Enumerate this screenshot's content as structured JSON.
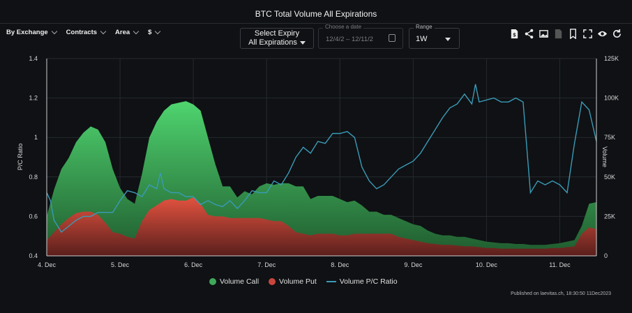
{
  "header": {
    "title": "BTC Total Volume All Expirations",
    "filters": [
      "By Exchange",
      "Contracts",
      "Area",
      "$"
    ],
    "expiry": {
      "line1": "Select Expiry",
      "line2": "All Expirations"
    },
    "date": {
      "label": "Choose a date",
      "value": "12/4/2 – 12/11/2"
    },
    "range": {
      "label": "Range",
      "value": "1W"
    }
  },
  "toolbar_icons": [
    "document-dollar-icon",
    "share-icon",
    "image-capture-icon",
    "csv-file-icon",
    "bookmark-icon",
    "fullscreen-icon",
    "eye-icon",
    "refresh-icon"
  ],
  "colors": {
    "call": "#3fa95a",
    "put": "#c9463c",
    "ratio": "#3a9bb8",
    "background": "#0f1114"
  },
  "legend": {
    "call": "Volume Call",
    "put": "Volume Put",
    "ratio": "Volume P/C Ratio"
  },
  "published": "Published on laevitas.ch, 18:30:50 11Dec2023",
  "chart_data": {
    "type": "area",
    "title": "BTC Total Volume All Expirations",
    "xlabel": "",
    "ylabel_left": "P/C Ratio",
    "ylabel_right": "Volume",
    "x_ticks": [
      "4. Dec",
      "5. Dec",
      "6. Dec",
      "7. Dec",
      "8. Dec",
      "9. Dec",
      "10. Dec",
      "11. Dec"
    ],
    "left_ticks": [
      "0.4",
      "0.6",
      "0.8",
      "1",
      "1.2",
      "1.4"
    ],
    "right_ticks": [
      "0",
      "25K",
      "50K",
      "75K",
      "100K",
      "125K"
    ],
    "ylim_left": [
      0.4,
      1.4
    ],
    "ylim_right": [
      0,
      125000
    ],
    "grid": true,
    "legend_position": "bottom",
    "series": [
      {
        "name": "Volume Call",
        "axis": "right",
        "x": [
          0,
          0.1,
          0.2,
          0.3,
          0.4,
          0.5,
          0.6,
          0.7,
          0.8,
          0.9,
          1.0,
          1.1,
          1.2,
          1.3,
          1.4,
          1.5,
          1.6,
          1.7,
          1.8,
          1.9,
          2.0,
          2.1,
          2.2,
          2.3,
          2.4,
          2.5,
          2.6,
          2.7,
          2.8,
          2.9,
          3.0,
          3.1,
          3.2,
          3.3,
          3.4,
          3.5,
          3.6,
          3.7,
          3.8,
          3.9,
          4.0,
          4.1,
          4.2,
          4.3,
          4.4,
          4.5,
          4.6,
          4.7,
          4.8,
          4.9,
          5.0,
          5.1,
          5.2,
          5.3,
          5.4,
          5.5,
          5.6,
          5.7,
          5.8,
          5.9,
          6.0,
          6.1,
          6.2,
          6.3,
          6.4,
          6.5,
          6.6,
          6.7,
          6.8,
          6.9,
          7.0,
          7.1,
          7.2,
          7.3,
          7.4,
          7.5
        ],
        "values": [
          25000,
          42000,
          55000,
          62000,
          72000,
          78000,
          82000,
          80000,
          72000,
          55000,
          43000,
          36000,
          33000,
          52000,
          75000,
          85000,
          92000,
          96000,
          97000,
          98000,
          96000,
          92000,
          75000,
          58000,
          44000,
          44000,
          37000,
          41000,
          39000,
          44000,
          46000,
          45000,
          46000,
          46000,
          44000,
          44000,
          36000,
          38000,
          38000,
          38000,
          36000,
          34000,
          35000,
          32000,
          28000,
          28000,
          26000,
          26000,
          24000,
          22000,
          20000,
          19000,
          16000,
          14000,
          13000,
          13000,
          12000,
          12000,
          11000,
          10000,
          9000,
          8500,
          8000,
          8000,
          7500,
          7500,
          7000,
          7000,
          7000,
          7500,
          8000,
          9000,
          10000,
          19000,
          33000,
          34000
        ]
      },
      {
        "name": "Volume Put",
        "axis": "right",
        "x": [
          0,
          0.1,
          0.2,
          0.3,
          0.4,
          0.5,
          0.6,
          0.7,
          0.8,
          0.9,
          1.0,
          1.1,
          1.2,
          1.3,
          1.4,
          1.5,
          1.6,
          1.7,
          1.8,
          1.9,
          2.0,
          2.1,
          2.2,
          2.3,
          2.4,
          2.5,
          2.6,
          2.7,
          2.8,
          2.9,
          3.0,
          3.1,
          3.2,
          3.3,
          3.4,
          3.5,
          3.6,
          3.7,
          3.8,
          3.9,
          4.0,
          4.1,
          4.2,
          4.3,
          4.4,
          4.5,
          4.6,
          4.7,
          4.8,
          4.9,
          5.0,
          5.1,
          5.2,
          5.3,
          5.4,
          5.5,
          5.6,
          5.7,
          5.8,
          5.9,
          6.0,
          6.1,
          6.2,
          6.3,
          6.4,
          6.5,
          6.6,
          6.7,
          6.8,
          6.9,
          7.0,
          7.1,
          7.2,
          7.3,
          7.4,
          7.5
        ],
        "values": [
          10000,
          15000,
          20000,
          24000,
          27000,
          28000,
          28000,
          26000,
          21000,
          15000,
          14000,
          12000,
          11000,
          22000,
          29000,
          32000,
          35000,
          36000,
          35000,
          35000,
          37000,
          33000,
          26000,
          25000,
          25000,
          24000,
          24000,
          24000,
          24000,
          24000,
          23000,
          22000,
          22000,
          19000,
          15000,
          14000,
          13000,
          14000,
          14000,
          14000,
          13000,
          13000,
          14000,
          14000,
          14000,
          14000,
          14000,
          14000,
          12000,
          11000,
          10000,
          9000,
          8000,
          7500,
          7000,
          7000,
          6500,
          6000,
          6000,
          5500,
          5000,
          5000,
          4500,
          4500,
          4500,
          4500,
          4500,
          4500,
          4500,
          5000,
          5000,
          5500,
          6000,
          14000,
          18000,
          17000
        ]
      },
      {
        "name": "Volume P/C Ratio",
        "axis": "left",
        "x": [
          0,
          0.05,
          0.1,
          0.15,
          0.2,
          0.3,
          0.4,
          0.5,
          0.6,
          0.7,
          0.8,
          0.9,
          1.0,
          1.1,
          1.2,
          1.3,
          1.4,
          1.5,
          1.55,
          1.6,
          1.7,
          1.8,
          1.9,
          2.0,
          2.1,
          2.2,
          2.3,
          2.4,
          2.5,
          2.6,
          2.7,
          2.8,
          2.9,
          3.0,
          3.1,
          3.2,
          3.3,
          3.4,
          3.5,
          3.6,
          3.7,
          3.8,
          3.9,
          4.0,
          4.1,
          4.2,
          4.3,
          4.4,
          4.5,
          4.6,
          4.7,
          4.8,
          4.9,
          5.0,
          5.1,
          5.2,
          5.3,
          5.4,
          5.5,
          5.6,
          5.7,
          5.8,
          5.85,
          5.9,
          6.0,
          6.1,
          6.2,
          6.3,
          6.4,
          6.5,
          6.6,
          6.7,
          6.8,
          6.9,
          7.0,
          7.1,
          7.2,
          7.3,
          7.4,
          7.5
        ],
        "values": [
          0.72,
          0.68,
          0.58,
          0.55,
          0.52,
          0.55,
          0.58,
          0.6,
          0.6,
          0.62,
          0.62,
          0.62,
          0.68,
          0.73,
          0.72,
          0.7,
          0.76,
          0.74,
          0.82,
          0.74,
          0.72,
          0.72,
          0.7,
          0.7,
          0.66,
          0.68,
          0.66,
          0.65,
          0.68,
          0.64,
          0.68,
          0.73,
          0.72,
          0.72,
          0.78,
          0.76,
          0.82,
          0.9,
          0.95,
          0.92,
          0.98,
          0.97,
          1.02,
          1.02,
          1.03,
          1.0,
          0.85,
          0.78,
          0.74,
          0.76,
          0.8,
          0.84,
          0.86,
          0.88,
          0.92,
          0.98,
          1.04,
          1.1,
          1.15,
          1.17,
          1.22,
          1.17,
          1.27,
          1.18,
          1.19,
          1.2,
          1.18,
          1.18,
          1.2,
          1.18,
          0.72,
          0.78,
          0.76,
          0.78,
          0.76,
          0.72,
          0.97,
          1.18,
          1.14,
          0.98
        ]
      }
    ]
  }
}
